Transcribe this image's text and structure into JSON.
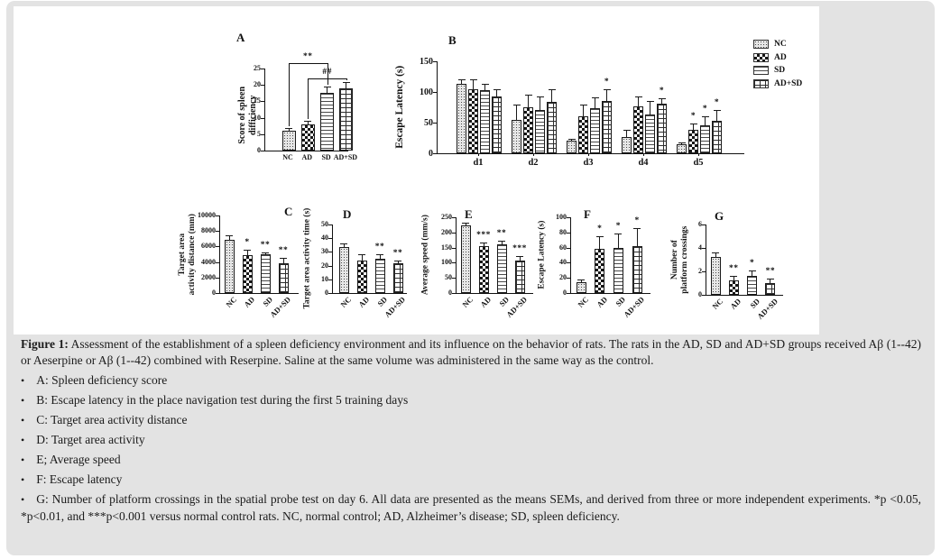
{
  "page": {
    "background": "#ffffff",
    "card_color": "#e3e3e3",
    "figure_background": "#ffffff"
  },
  "caption": {
    "label": "Figure 1:",
    "text": "Assessment of the establishment of a spleen deficiency environment and its influence on the behavior of rats. The rats in the AD, SD and AD+SD groups received Aβ (1--42) or Aeserpine or Aβ (1--42) combined with Reserpine. Saline at the same volume was administered in the same way as the control.",
    "bullet_char": "•",
    "bullets": [
      "A: Spleen deficiency score",
      "B: Escape latency in the place navigation test during the first 5 training days",
      "C: Target area activity distance",
      "D:  Target area activity",
      "E; Average speed",
      "F: Escape latency",
      "G: Number of platform crossings in the spatial probe test on day 6. All data are presented as the means SEMs, and derived from three or more independent experiments. *p <0.05, *p<0.01, and ***p<0.001 versus normal control rats. NC, normal control; AD, Alzheimer’s disease; SD, spleen deficiency."
    ]
  },
  "chart_data": [
    {
      "id": "A",
      "type": "bar",
      "panel_letter": "A",
      "ylabel": "Score of spleen difficiency",
      "categories": [
        "NC",
        "AD",
        "SD",
        "AD+SD"
      ],
      "patterns": [
        "dots",
        "checker",
        "hlines",
        "grid"
      ],
      "values": [
        6,
        8,
        17.5,
        19
      ],
      "errors": [
        0.8,
        1,
        2,
        2
      ],
      "sig": [
        "",
        "",
        "",
        ""
      ],
      "ylim": [
        0,
        25
      ],
      "yticks": [
        0,
        5,
        10,
        15,
        20,
        25
      ],
      "brackets": [
        {
          "label": "**",
          "from": 0,
          "to": 2
        },
        {
          "label": "##",
          "from": 1,
          "to": 3
        }
      ]
    },
    {
      "id": "B",
      "type": "bar",
      "panel_letter": "B",
      "ylabel": "Escape Latency (s)",
      "categories": [
        "d1",
        "d2",
        "d3",
        "d4",
        "d5"
      ],
      "series": [
        {
          "name": "NC",
          "pattern": "dots",
          "values": [
            113,
            55,
            21,
            26,
            15
          ],
          "errors": [
            8,
            25,
            3,
            12,
            3
          ],
          "sig": [
            "",
            "",
            "",
            "",
            ""
          ]
        },
        {
          "name": "AD",
          "pattern": "checker",
          "values": [
            105,
            75,
            60,
            76,
            38
          ],
          "errors": [
            15,
            20,
            20,
            17,
            10
          ],
          "sig": [
            "",
            "",
            "",
            "",
            "*"
          ]
        },
        {
          "name": "SD",
          "pattern": "hlines",
          "values": [
            103,
            70,
            73,
            63,
            46
          ],
          "errors": [
            10,
            22,
            18,
            23,
            15
          ],
          "sig": [
            "",
            "",
            "",
            "",
            "*"
          ]
        },
        {
          "name": "AD+SD",
          "pattern": "grid",
          "values": [
            92,
            84,
            85,
            81,
            53
          ],
          "errors": [
            13,
            20,
            20,
            8,
            18
          ],
          "sig": [
            "",
            "",
            "*",
            "*",
            "*"
          ]
        }
      ],
      "ylim": [
        0,
        150
      ],
      "yticks": [
        0,
        50,
        100,
        150
      ],
      "legend": [
        "NC",
        "AD",
        "SD",
        "AD+SD"
      ],
      "legend_position": "top-right"
    },
    {
      "id": "C",
      "type": "bar",
      "panel_letter": "C",
      "ylabel": "Target area\nactivity distance (mm)",
      "categories": [
        "NC",
        "AD",
        "SD",
        "AD+SD"
      ],
      "patterns": [
        "dots",
        "checker",
        "hlines",
        "grid"
      ],
      "values": [
        6900,
        4900,
        4950,
        3800
      ],
      "errors": [
        500,
        700,
        300,
        700
      ],
      "sig": [
        "",
        "*",
        "**",
        "**"
      ],
      "ylim": [
        0,
        10000
      ],
      "yticks": [
        0,
        2000,
        4000,
        6000,
        8000,
        10000
      ]
    },
    {
      "id": "D",
      "type": "bar",
      "panel_letter": "D",
      "ylabel": "Target area activity time (s)",
      "categories": [
        "NC",
        "AD",
        "SD",
        "AD+SD"
      ],
      "patterns": [
        "dots",
        "checker",
        "hlines",
        "grid"
      ],
      "values": [
        33.5,
        23.5,
        25,
        21.5
      ],
      "errors": [
        3,
        5,
        3,
        2
      ],
      "sig": [
        "",
        "",
        "**",
        "**"
      ],
      "ylim": [
        0,
        50
      ],
      "yticks": [
        0,
        10,
        20,
        30,
        40,
        50
      ]
    },
    {
      "id": "E",
      "type": "bar",
      "panel_letter": "E",
      "ylabel": "Average speed (mm/s)",
      "categories": [
        "NC",
        "AD",
        "SD",
        "AD+SD"
      ],
      "patterns": [
        "dots",
        "checker",
        "hlines",
        "grid"
      ],
      "values": [
        222,
        155,
        160,
        106
      ],
      "errors": [
        10,
        12,
        12,
        15
      ],
      "sig": [
        "",
        "***",
        "**",
        "***"
      ],
      "ylim": [
        0,
        250
      ],
      "yticks": [
        0,
        50,
        100,
        150,
        200,
        250
      ]
    },
    {
      "id": "F",
      "type": "bar",
      "panel_letter": "F",
      "ylabel": "Escape Latency (s)",
      "categories": [
        "NC",
        "AD",
        "SD",
        "AD+SD"
      ],
      "patterns": [
        "dots",
        "checker",
        "hlines",
        "grid"
      ],
      "values": [
        14,
        58,
        59,
        62
      ],
      "errors": [
        4,
        17,
        20,
        24
      ],
      "sig": [
        "",
        "*",
        "*",
        "*"
      ],
      "ylim": [
        0,
        100
      ],
      "yticks": [
        0,
        20,
        40,
        60,
        80,
        100
      ]
    },
    {
      "id": "G",
      "type": "bar",
      "panel_letter": "G",
      "ylabel": "Number of\nplatform crossings",
      "categories": [
        "NC",
        "AD",
        "SD",
        "AD+SD"
      ],
      "patterns": [
        "dots",
        "checker",
        "hlines",
        "grid"
      ],
      "values": [
        3.2,
        1.2,
        1.6,
        1.0
      ],
      "errors": [
        0.4,
        0.4,
        0.5,
        0.4
      ],
      "sig": [
        "",
        "**",
        "*",
        "**"
      ],
      "ylim": [
        0,
        6
      ],
      "yticks": [
        0,
        2,
        4,
        6
      ]
    }
  ]
}
